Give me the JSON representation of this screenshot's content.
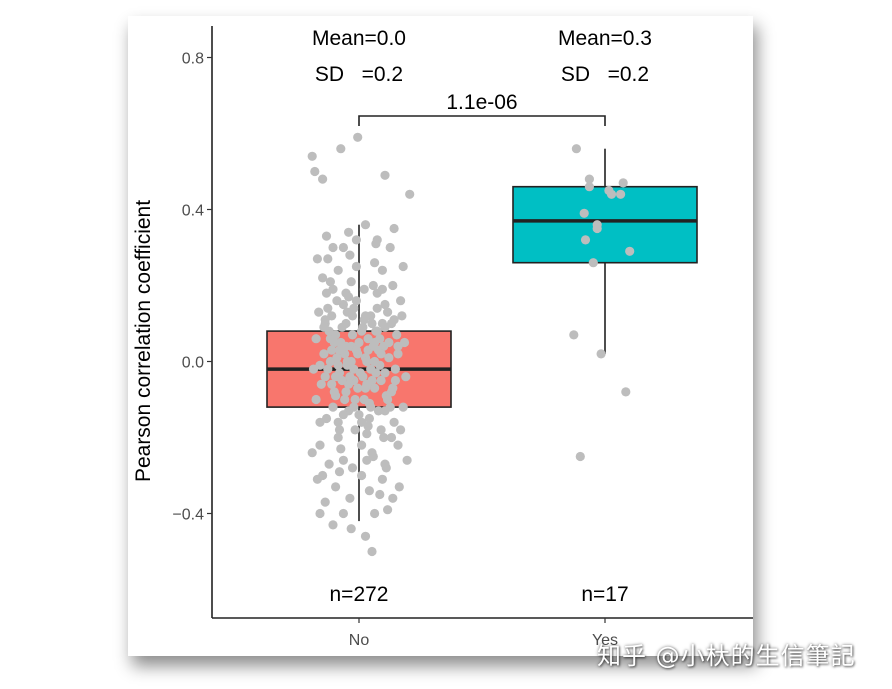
{
  "chart_data": {
    "type": "box",
    "ylabel": "Pearson correlation coefficient",
    "xlabel": "",
    "ylim": [
      -0.62,
      0.86
    ],
    "yticks": [
      -0.4,
      0.0,
      0.4,
      0.8
    ],
    "ytick_labels": [
      "−0.4",
      "0.0",
      "0.4",
      "0.8"
    ],
    "categories": [
      "No",
      "Yes"
    ],
    "groups": [
      {
        "name": "No",
        "color": "#F8766D",
        "box": {
          "q1": -0.12,
          "median": -0.02,
          "q3": 0.08,
          "whisker_low": -0.42,
          "whisker_high": 0.36
        },
        "mean_text": "Mean=0.0",
        "sd_text": "SD   =0.2",
        "n_text": "n=272",
        "points": [
          [
            -0.04,
            -0.02
          ],
          [
            0.05,
            0.01
          ],
          [
            -0.15,
            0.03
          ],
          [
            0.17,
            -0.05
          ],
          [
            -0.22,
            0.06
          ],
          [
            0.25,
            -0.08
          ],
          [
            0.02,
            0.08
          ],
          [
            -0.08,
            -0.06
          ],
          [
            0.12,
            0.05
          ],
          [
            -0.3,
            -0.01
          ],
          [
            0.3,
            0.02
          ],
          [
            -0.18,
            -0.09
          ],
          [
            0.2,
            0.09
          ],
          [
            -0.05,
            0.12
          ],
          [
            0.08,
            -0.11
          ],
          [
            -0.12,
            0.15
          ],
          [
            0.15,
            -0.13
          ],
          [
            -0.26,
            0.1
          ],
          [
            0.28,
            -0.02
          ],
          [
            0.0,
            -0.14
          ],
          [
            -0.1,
            0.18
          ],
          [
            0.11,
            0.2
          ],
          [
            -0.2,
            -0.12
          ],
          [
            0.22,
            0.13
          ],
          [
            -0.28,
            0.22
          ],
          [
            0.27,
            -0.16
          ],
          [
            -0.02,
            0.25
          ],
          [
            0.06,
            -0.19
          ],
          [
            -0.16,
            -0.2
          ],
          [
            0.18,
            0.24
          ],
          [
            -0.07,
            0.28
          ],
          [
            0.1,
            -0.24
          ],
          [
            -0.24,
            0.27
          ],
          [
            0.24,
            0.3
          ],
          [
            -0.12,
            -0.26
          ],
          [
            0.14,
            0.32
          ],
          [
            0.02,
            -0.3
          ],
          [
            -0.2,
            0.3
          ],
          [
            0.21,
            -0.28
          ],
          [
            -0.3,
            -0.22
          ],
          [
            -0.34,
            0.5
          ],
          [
            0.39,
            0.44
          ],
          [
            -0.28,
            0.48
          ],
          [
            -0.01,
            0.59
          ],
          [
            -0.14,
            0.56
          ],
          [
            0.2,
            0.49
          ],
          [
            -0.36,
            0.54
          ],
          [
            -0.25,
            0.18
          ],
          [
            0.32,
            0.16
          ],
          [
            -0.04,
            0.14
          ],
          [
            0.09,
            0.12
          ],
          [
            -0.18,
            0.07
          ],
          [
            0.19,
            0.04
          ],
          [
            -0.26,
            -0.04
          ],
          [
            0.26,
            -0.07
          ],
          [
            -0.1,
            -0.08
          ],
          [
            0.04,
            -0.1
          ],
          [
            0.13,
            -0.03
          ],
          [
            -0.06,
            0.04
          ],
          [
            0.07,
            0.06
          ],
          [
            -0.15,
            -0.03
          ],
          [
            0.16,
            -0.01
          ],
          [
            -0.22,
            0.0
          ],
          [
            0.23,
            0.01
          ],
          [
            -0.02,
            0.03
          ],
          [
            0.03,
            -0.04
          ],
          [
            -0.11,
            0.02
          ],
          [
            0.12,
            0.0
          ],
          [
            -0.09,
            -0.01
          ],
          [
            0.09,
            -0.02
          ],
          [
            -0.19,
            0.05
          ],
          [
            0.29,
            0.07
          ],
          [
            -0.27,
            0.09
          ],
          [
            0.27,
            0.11
          ],
          [
            -0.04,
            -0.05
          ],
          [
            0.05,
            -0.07
          ],
          [
            -0.13,
            0.09
          ],
          [
            0.14,
            0.08
          ],
          [
            -0.21,
            -0.06
          ],
          [
            0.21,
            -0.09
          ],
          [
            -0.08,
            -0.13
          ],
          [
            0.08,
            -0.15
          ],
          [
            -0.16,
            -0.16
          ],
          [
            0.17,
            -0.18
          ],
          [
            -0.25,
            -0.15
          ],
          [
            0.25,
            -0.2
          ],
          [
            -0.03,
            -0.18
          ],
          [
            0.02,
            -0.22
          ],
          [
            -0.14,
            -0.23
          ],
          [
            0.11,
            -0.25
          ],
          [
            -0.23,
            -0.27
          ],
          [
            0.2,
            -0.27
          ],
          [
            -0.05,
            -0.28
          ],
          [
            0.06,
            -0.26
          ],
          [
            -0.32,
            -0.31
          ],
          [
            0.31,
            -0.33
          ],
          [
            -0.18,
            -0.33
          ],
          [
            0.16,
            -0.35
          ],
          [
            -0.07,
            -0.36
          ],
          [
            0.08,
            -0.34
          ],
          [
            -0.26,
            -0.37
          ],
          [
            0.26,
            -0.36
          ],
          [
            -0.12,
            -0.4
          ],
          [
            0.12,
            -0.4
          ],
          [
            -0.2,
            -0.43
          ],
          [
            0.05,
            -0.46
          ],
          [
            -0.06,
            -0.44
          ],
          [
            0.1,
            -0.5
          ],
          [
            0.22,
            -0.39
          ],
          [
            -0.3,
            -0.4
          ],
          [
            -0.06,
            0.21
          ],
          [
            0.04,
            0.19
          ],
          [
            -0.16,
            0.24
          ],
          [
            0.18,
            0.19
          ],
          [
            -0.24,
            0.14
          ],
          [
            0.25,
            0.1
          ],
          [
            -0.32,
            0.27
          ],
          [
            0.34,
            0.25
          ],
          [
            -0.12,
            0.3
          ],
          [
            0.12,
            0.26
          ],
          [
            -0.02,
            0.32
          ],
          [
            0.05,
            0.36
          ],
          [
            -0.25,
            0.33
          ],
          [
            0.27,
            0.35
          ],
          [
            0.13,
            0.31
          ],
          [
            -0.08,
            0.34
          ],
          [
            -0.22,
            0.21
          ],
          [
            0.26,
            0.2
          ],
          [
            -0.31,
            0.13
          ],
          [
            0.33,
            0.12
          ],
          [
            -0.17,
            0.16
          ],
          [
            0.2,
            0.15
          ],
          [
            -0.33,
            0.06
          ],
          [
            0.35,
            0.05
          ],
          [
            -0.35,
            -0.02
          ],
          [
            0.36,
            -0.04
          ],
          [
            -0.33,
            -0.1
          ],
          [
            0.34,
            -0.12
          ],
          [
            -0.3,
            -0.16
          ],
          [
            0.32,
            -0.18
          ],
          [
            -0.36,
            -0.24
          ],
          [
            0.37,
            -0.26
          ],
          [
            -0.28,
            -0.3
          ],
          [
            0.3,
            -0.22
          ],
          [
            -0.15,
            -0.29
          ],
          [
            0.18,
            -0.31
          ],
          [
            -0.1,
            0.1
          ],
          [
            0.1,
            0.1
          ],
          [
            -0.05,
            0.07
          ],
          [
            0.03,
            0.09
          ],
          [
            -0.09,
            0.0
          ],
          [
            0.06,
            0.0
          ],
          [
            -0.13,
            -0.05
          ],
          [
            0.1,
            -0.05
          ],
          [
            -0.17,
            0.01
          ],
          [
            0.15,
            0.03
          ],
          [
            -0.21,
            0.03
          ],
          [
            0.2,
            -0.03
          ],
          [
            -0.24,
            -0.02
          ],
          [
            0.23,
            0.05
          ],
          [
            -0.27,
            0.02
          ],
          [
            0.28,
            -0.05
          ],
          [
            -0.01,
            -0.07
          ],
          [
            0.0,
            0.05
          ],
          [
            -0.03,
            -0.1
          ],
          [
            0.04,
            0.11
          ],
          [
            -0.11,
            -0.1
          ],
          [
            0.13,
            0.08
          ],
          [
            -0.19,
            -0.08
          ],
          [
            0.18,
            0.1
          ],
          [
            -0.23,
            0.08
          ],
          [
            0.22,
            -0.1
          ],
          [
            -0.07,
            -0.04
          ],
          [
            0.07,
            0.03
          ],
          [
            -0.14,
            0.05
          ],
          [
            0.12,
            -0.07
          ],
          [
            -0.18,
            -0.04
          ],
          [
            0.16,
            0.06
          ],
          [
            -0.04,
            -0.12
          ],
          [
            0.05,
            0.12
          ],
          [
            -0.09,
            0.13
          ],
          [
            0.09,
            -0.12
          ],
          [
            -0.12,
            -0.14
          ],
          [
            0.14,
            0.14
          ],
          [
            -0.21,
            0.12
          ],
          [
            0.2,
            -0.13
          ],
          [
            -0.26,
            0.11
          ],
          [
            0.24,
            -0.12
          ],
          [
            -0.29,
            -0.06
          ],
          [
            0.3,
            0.04
          ],
          [
            -0.02,
            0.16
          ],
          [
            0.02,
            -0.16
          ],
          [
            -0.08,
            0.17
          ],
          [
            0.07,
            -0.17
          ],
          [
            -0.15,
            -0.18
          ],
          [
            0.14,
            0.18
          ],
          [
            -0.2,
            0.19
          ],
          [
            0.19,
            -0.2
          ],
          [
            -0.01,
            0.02
          ],
          [
            0.01,
            -0.03
          ],
          [
            -0.06,
            0.0
          ],
          [
            0.06,
            -0.06
          ],
          [
            -0.1,
            0.04
          ],
          [
            0.11,
            0.04
          ],
          [
            -0.16,
            -0.01
          ],
          [
            0.17,
            0.02
          ]
        ]
      },
      {
        "name": "Yes",
        "color": "#00BFC4",
        "box": {
          "q1": 0.26,
          "median": 0.37,
          "q3": 0.46,
          "whisker_low": 0.02,
          "whisker_high": 0.56
        },
        "mean_text": "Mean=0.3",
        "sd_text": "SD   =0.2",
        "n_text": "n=17",
        "points": [
          [
            -0.22,
            0.56
          ],
          [
            -0.12,
            0.48
          ],
          [
            -0.12,
            0.46
          ],
          [
            0.03,
            0.45
          ],
          [
            0.05,
            0.44
          ],
          [
            0.12,
            0.44
          ],
          [
            0.14,
            0.47
          ],
          [
            -0.16,
            0.39
          ],
          [
            -0.06,
            0.36
          ],
          [
            -0.06,
            0.35
          ],
          [
            -0.15,
            0.32
          ],
          [
            0.19,
            0.29
          ],
          [
            -0.09,
            0.26
          ],
          [
            -0.24,
            0.07
          ],
          [
            -0.03,
            0.02
          ],
          [
            0.16,
            -0.08
          ],
          [
            -0.19,
            -0.25
          ]
        ]
      }
    ],
    "comparison": {
      "label": "1.1e-06",
      "from": "No",
      "to": "Yes"
    }
  },
  "watermark": "知乎 @小杕的生信筆記"
}
